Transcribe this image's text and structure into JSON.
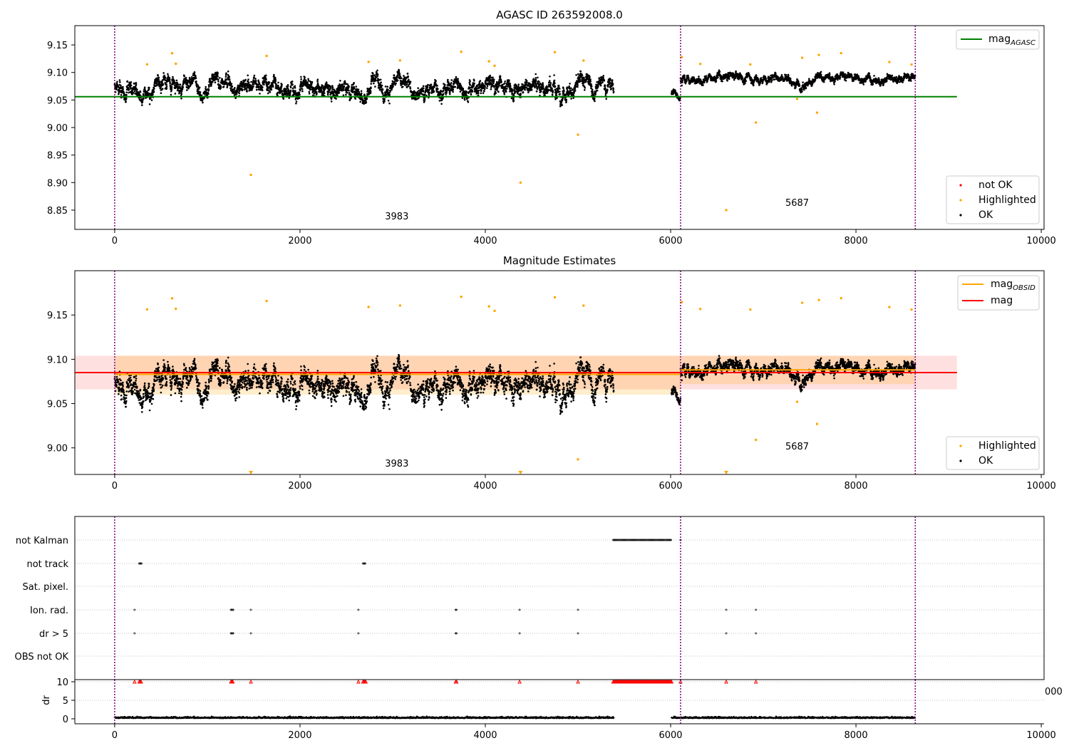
{
  "colors": {
    "ok": "#000000",
    "highlighted": "#ffa500",
    "not_ok": "#ff0000",
    "mag_agasc": "#008000",
    "mag_obsid": "#ffa500",
    "mag": "#ff0000",
    "obs_boundary": "#800080",
    "grid": "#b0b0b0"
  },
  "chart_data": [
    {
      "type": "scatter",
      "title": "AGASC ID 263592008.0",
      "xlim": [
        -430,
        10030
      ],
      "ylim": [
        8.815,
        9.185
      ],
      "xticks": [
        "0",
        "2000",
        "4000",
        "6000",
        "8000",
        "10000"
      ],
      "yticks": [
        "8.85",
        "8.90",
        "8.95",
        "9.00",
        "9.05",
        "9.10",
        "9.15"
      ],
      "obs_boundaries": [
        0,
        6107,
        8640
      ],
      "obs_labels": [
        {
          "text": "3983",
          "x": 3045,
          "y": 8.833
        },
        {
          "text": "5687",
          "x": 7365,
          "y": 8.858
        }
      ],
      "series": [
        {
          "name": "mag_AGASC",
          "kind": "hline",
          "y": 9.056,
          "x_range": [
            -430,
            9090
          ]
        },
        {
          "name": "OK",
          "kind": "points",
          "ranges": [
            {
              "x": [
                0,
                5385
              ],
              "mean": 9.077,
              "spread": 0.03
            },
            {
              "x": [
                6010,
                6107
              ],
              "mean": 9.062,
              "spread": 0.012
            },
            {
              "x": [
                6107,
                8640
              ],
              "mean": 9.088,
              "spread": 0.016
            }
          ]
        },
        {
          "name": "Highlighted",
          "kind": "points",
          "outliers": [
            [
              1470,
              8.914
            ],
            [
              4380,
              8.9
            ],
            [
              5000,
              8.987
            ],
            [
              6600,
              8.85
            ],
            [
              6920,
              9.009
            ],
            [
              7365,
              9.052
            ],
            [
              7580,
              9.027
            ]
          ]
        }
      ],
      "legends": [
        {
          "position": "upper right",
          "entries": [
            {
              "label": "mag",
              "sub": "AGASC",
              "kind": "line",
              "color": "#008000"
            }
          ]
        },
        {
          "position": "lower right",
          "entries": [
            {
              "label": "not OK",
              "kind": "dot",
              "color": "#ff0000"
            },
            {
              "label": "Highlighted",
              "kind": "dot",
              "color": "#ffa500"
            },
            {
              "label": "OK",
              "kind": "dot",
              "color": "#000000"
            }
          ]
        }
      ]
    },
    {
      "type": "scatter",
      "title": "Magnitude Estimates",
      "xlim": [
        -430,
        10030
      ],
      "ylim": [
        8.97,
        9.2
      ],
      "xticks": [
        "0",
        "2000",
        "4000",
        "6000",
        "8000",
        "10000"
      ],
      "yticks": [
        "9.00",
        "9.05",
        "9.10",
        "9.15"
      ],
      "obs_boundaries": [
        0,
        6107,
        8640
      ],
      "obs_labels": [
        {
          "text": "3983",
          "x": 3045,
          "y": 8.979
        },
        {
          "text": "5687",
          "x": 7365,
          "y": 8.998
        }
      ],
      "bands": [
        {
          "name": "mag",
          "x_range": [
            -430,
            9090
          ],
          "y": [
            9.066,
            9.104
          ],
          "color": "#ff0000",
          "opacity": 0.12
        },
        {
          "name": "mag_OBSID 3983",
          "x_range": [
            0,
            6107
          ],
          "y": [
            9.06,
            9.104
          ],
          "color": "#ffa500",
          "opacity": 0.2
        },
        {
          "name": "mag_OBSID 5687",
          "x_range": [
            6107,
            8640
          ],
          "y": [
            9.072,
            9.104
          ],
          "color": "#ffa500",
          "opacity": 0.2
        }
      ],
      "series": [
        {
          "name": "mag",
          "kind": "hline",
          "y": 9.085,
          "x_range": [
            -430,
            9090
          ]
        },
        {
          "name": "mag_OBSID",
          "kind": "segments",
          "segments": [
            {
              "x": [
                0,
                6107
              ],
              "y": 9.083
            },
            {
              "x": [
                6107,
                8640
              ],
              "y": 9.088
            }
          ]
        },
        {
          "name": "OK",
          "kind": "points",
          "ranges": [
            {
              "x": [
                0,
                5385
              ],
              "mean": 9.077,
              "spread": 0.03
            },
            {
              "x": [
                6010,
                6107
              ],
              "mean": 9.062,
              "spread": 0.012
            },
            {
              "x": [
                6107,
                8640
              ],
              "mean": 9.088,
              "spread": 0.016
            }
          ]
        },
        {
          "name": "Highlighted",
          "kind": "points",
          "outliers": [
            [
              5000,
              8.987
            ],
            [
              6920,
              9.009
            ],
            [
              7365,
              9.052
            ],
            [
              7580,
              9.027
            ]
          ],
          "off_scale_below": [
            1470,
            4380,
            6600
          ]
        }
      ],
      "legends": [
        {
          "position": "upper right",
          "entries": [
            {
              "label": "mag",
              "sub": "OBSID",
              "kind": "line",
              "color": "#ffa500"
            },
            {
              "label": "mag",
              "kind": "line",
              "color": "#ff0000"
            }
          ]
        },
        {
          "position": "lower right",
          "entries": [
            {
              "label": "Highlighted",
              "kind": "dot",
              "color": "#ffa500"
            },
            {
              "label": "OK",
              "kind": "dot",
              "color": "#000000"
            }
          ]
        }
      ]
    },
    {
      "type": "scatter",
      "title": "",
      "xlim": [
        -430,
        10030
      ],
      "xticks": [
        "0",
        "2000",
        "4000",
        "6000",
        "8000",
        "10000"
      ],
      "obs_boundaries": [
        0,
        6107,
        8640
      ],
      "flag_rows": [
        "not Kalman",
        "not track",
        "Sat. pixel.",
        "Ion. rad.",
        "dr > 5",
        "OBS not OK"
      ],
      "flags": {
        "not Kalman": {
          "ranges": [
            [
              5380,
              6010
            ]
          ],
          "points": [
            6107
          ]
        },
        "not track": {
          "ranges": [
            [
              265,
              290
            ],
            [
              2680,
              2710
            ]
          ],
          "points": []
        },
        "Sat. pixel.": {
          "ranges": [],
          "points": []
        },
        "Ion. rad.": {
          "ranges": [
            [
              1255,
              1280
            ],
            [
              3680,
              3695
            ]
          ],
          "points": [
            215,
            1470,
            2630,
            4370,
            5000,
            6600,
            6920
          ]
        },
        "dr > 5": {
          "ranges": [
            [
              1255,
              1280
            ],
            [
              3680,
              3695
            ]
          ],
          "points": [
            215,
            1470,
            2630,
            4370,
            5000,
            6600,
            6920
          ]
        },
        "OBS not OK": {
          "ranges": [],
          "points": []
        }
      },
      "dr_panel": {
        "ylabel": "dr",
        "yticks": [
          "0",
          "5",
          "10"
        ],
        "ylim": [
          -1,
          10.5
        ],
        "ok_ranges": [
          [
            0,
            5385
          ],
          [
            6010,
            8640
          ]
        ],
        "clipped_markers": {
          "ranges": [
            [
              5380,
              6010
            ],
            [
              265,
              290
            ],
            [
              2680,
              2710
            ],
            [
              1255,
              1280
            ],
            [
              3680,
              3695
            ]
          ],
          "points": [
            215,
            1470,
            2630,
            4370,
            5000,
            6600,
            6920,
            6107
          ]
        },
        "overflow_tick": "000"
      }
    }
  ]
}
